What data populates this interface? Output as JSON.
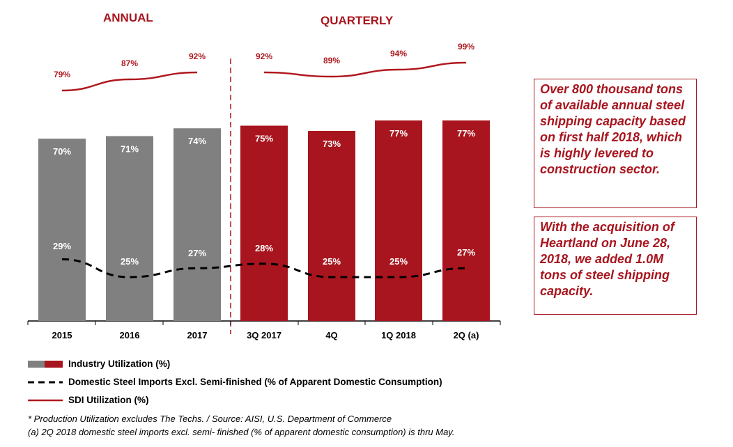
{
  "titles": {
    "annual": "ANNUAL",
    "quarterly": "QUARTERLY"
  },
  "chart_data": {
    "type": "bar",
    "categories": [
      "2015",
      "2016",
      "2017",
      "3Q 2017",
      "4Q",
      "1Q 2018",
      "2Q (a)"
    ],
    "ylim": [
      0,
      100
    ],
    "series": [
      {
        "name": "Industry Utilization (%)",
        "kind": "bar",
        "values": [
          70,
          71,
          74,
          75,
          73,
          77,
          77
        ],
        "labels": [
          "70%",
          "71%",
          "74%",
          "75%",
          "73%",
          "77%",
          "77%"
        ]
      },
      {
        "name": "Domestic Steel Imports Excl. Semi-finished (% of Apparent Domestic Consumption)",
        "kind": "dashed-line",
        "values": [
          29,
          25,
          27,
          28,
          25,
          25,
          27
        ],
        "labels": [
          "29%",
          "25%",
          "27%",
          "28%",
          "25%",
          "25%",
          "27%"
        ]
      },
      {
        "name": "SDI Utilization (%)",
        "kind": "line",
        "values": [
          79,
          87,
          92,
          92,
          89,
          94,
          99
        ],
        "labels": [
          "79%",
          "87%",
          "92%",
          "92%",
          "89%",
          "94%",
          "99%"
        ]
      }
    ],
    "colors": {
      "annual_bar": "#808080",
      "quarterly_bar": "#a8151e",
      "sdi_line": "#b0181f",
      "imports_line": "#000000"
    }
  },
  "callouts": [
    "Over 800 thousand tons of available annual steel shipping capacity based on first half 2018, which is highly levered to construction sector.",
    "With the acquisition of Heartland on June 28, 2018, we added 1.0M tons of steel shipping capacity."
  ],
  "legend": {
    "industry": "Industry Utilization (%)",
    "imports": "Domestic Steel Imports Excl. Semi-finished (% of Apparent Domestic Consumption)",
    "sdi": "SDI Utilization (%)"
  },
  "footnotes": [
    "* Production Utilization excludes The Techs. / Source: AISI, U.S. Department of Commerce",
    "(a)  2Q 2018 domestic steel imports excl. semi- finished (% of apparent domestic consumption) is thru May."
  ]
}
